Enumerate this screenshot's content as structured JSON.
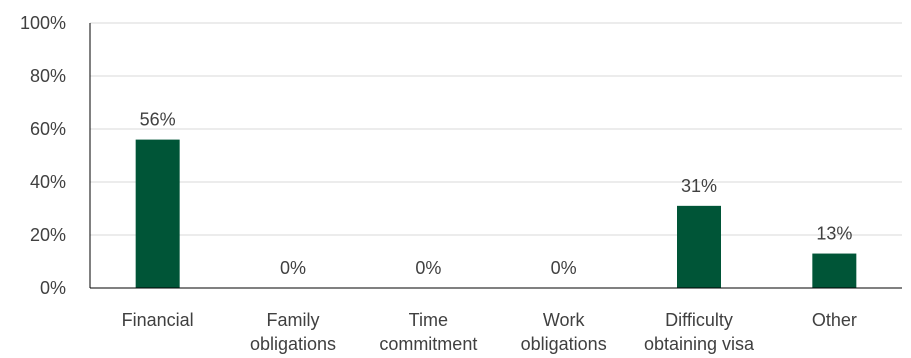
{
  "chart_data": {
    "type": "bar",
    "categories": [
      [
        "Financial"
      ],
      [
        "Family",
        "obligations"
      ],
      [
        "Time",
        "commitment"
      ],
      [
        "Work",
        "obligations"
      ],
      [
        "Difficulty",
        "obtaining visa"
      ],
      [
        "Other"
      ]
    ],
    "values": [
      56,
      0,
      0,
      0,
      31,
      13
    ],
    "data_labels": [
      "56%",
      "0%",
      "0%",
      "0%",
      "31%",
      "13%"
    ],
    "ylim": [
      0,
      100
    ],
    "yticks": [
      0,
      20,
      40,
      60,
      80,
      100
    ],
    "ytick_labels": [
      "0%",
      "20%",
      "40%",
      "60%",
      "80%",
      "100%"
    ],
    "grid": true,
    "legend": "none",
    "colors": {
      "bar": "#005537",
      "grid": "#d9d9d9",
      "axis": "#000000",
      "text": "#404040"
    }
  }
}
